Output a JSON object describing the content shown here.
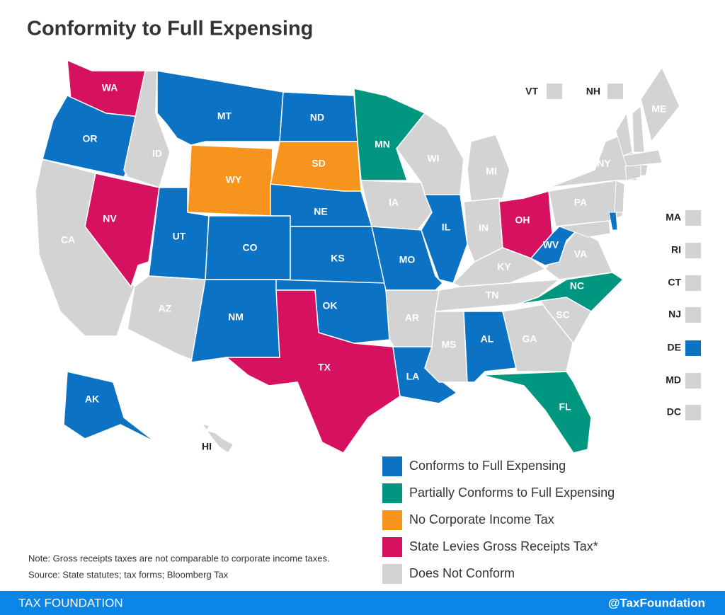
{
  "title": "Conformity to Full Expensing",
  "legend": [
    {
      "label": "Conforms to Full Expensing",
      "color": "#0b72c4"
    },
    {
      "label": "Partially Conforms to Full Expensing",
      "color": "#00967f"
    },
    {
      "label": "No Corporate Income Tax",
      "color": "#f7941d"
    },
    {
      "label": "State Levies Gross Receipts Tax*",
      "color": "#d6115f"
    },
    {
      "label": "Does Not Conform",
      "color": "#d3d3d3"
    }
  ],
  "states": [
    {
      "label": "WA",
      "category": 3
    },
    {
      "label": "OR",
      "category": 0
    },
    {
      "label": "CA",
      "category": 4
    },
    {
      "label": "NV",
      "category": 3
    },
    {
      "label": "ID",
      "category": 4
    },
    {
      "label": "MT",
      "category": 0
    },
    {
      "label": "WY",
      "category": 2
    },
    {
      "label": "UT",
      "category": 0
    },
    {
      "label": "CO",
      "category": 0
    },
    {
      "label": "AZ",
      "category": 4
    },
    {
      "label": "NM",
      "category": 0
    },
    {
      "label": "ND",
      "category": 0
    },
    {
      "label": "SD",
      "category": 2
    },
    {
      "label": "NE",
      "category": 0
    },
    {
      "label": "KS",
      "category": 0
    },
    {
      "label": "OK",
      "category": 0
    },
    {
      "label": "TX",
      "category": 3
    },
    {
      "label": "MN",
      "category": 1
    },
    {
      "label": "IA",
      "category": 4
    },
    {
      "label": "MO",
      "category": 0
    },
    {
      "label": "AR",
      "category": 4
    },
    {
      "label": "LA",
      "category": 0
    },
    {
      "label": "WI",
      "category": 4
    },
    {
      "label": "IL",
      "category": 0
    },
    {
      "label": "MI",
      "category": 4
    },
    {
      "label": "IN",
      "category": 4
    },
    {
      "label": "OH",
      "category": 3
    },
    {
      "label": "KY",
      "category": 4
    },
    {
      "label": "TN",
      "category": 4
    },
    {
      "label": "MS",
      "category": 4
    },
    {
      "label": "AL",
      "category": 0
    },
    {
      "label": "GA",
      "category": 4
    },
    {
      "label": "FL",
      "category": 1
    },
    {
      "label": "SC",
      "category": 4
    },
    {
      "label": "NC",
      "category": 1
    },
    {
      "label": "VA",
      "category": 4
    },
    {
      "label": "WV",
      "category": 0
    },
    {
      "label": "PA",
      "category": 4
    },
    {
      "label": "NY",
      "category": 4
    },
    {
      "label": "ME",
      "category": 4
    },
    {
      "label": "AK",
      "category": 0
    },
    {
      "label": "HI",
      "category": 4
    }
  ],
  "small_states": [
    {
      "label": "VT",
      "category": 4
    },
    {
      "label": "NH",
      "category": 4
    },
    {
      "label": "MA",
      "category": 4
    },
    {
      "label": "RI",
      "category": 4
    },
    {
      "label": "CT",
      "category": 4
    },
    {
      "label": "NJ",
      "category": 4
    },
    {
      "label": "DE",
      "category": 0
    },
    {
      "label": "MD",
      "category": 4
    },
    {
      "label": "DC",
      "category": 4
    }
  ],
  "note": "Note: Gross receipts taxes are not comparable to corporate income taxes.",
  "source": "Source: State statutes; tax forms; Bloomberg Tax",
  "footer": {
    "brand": "TAX FOUNDATION",
    "handle": "@TaxFoundation"
  }
}
